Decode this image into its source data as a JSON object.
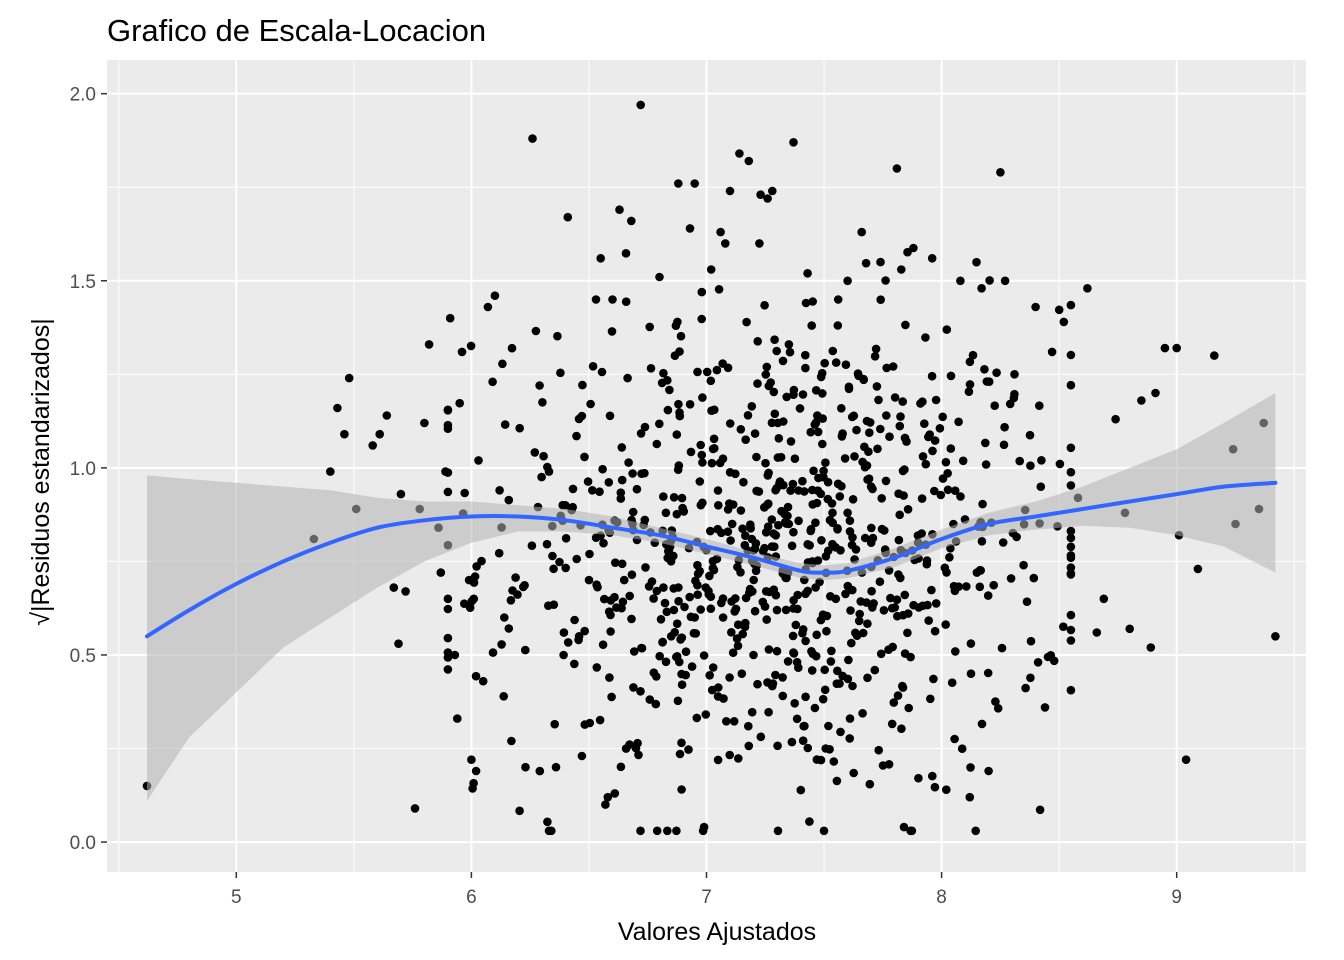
{
  "chart_data": {
    "type": "scatter",
    "title": "Grafico de Escala-Locacion",
    "xlabel": "Valores Ajustados",
    "ylabel": "Residuos estandarizados",
    "ylabel_prefix": "√|",
    "ylabel_suffix": "|",
    "xlim": [
      4.45,
      9.55
    ],
    "ylim": [
      -0.08,
      2.09
    ],
    "x_ticks": [
      5,
      6,
      7,
      8,
      9
    ],
    "x_tick_labels": [
      "5",
      "6",
      "7",
      "8",
      "9"
    ],
    "y_ticks": [
      0.0,
      0.5,
      1.0,
      1.5,
      2.0
    ],
    "y_tick_labels": [
      "0.0",
      "0.5",
      "1.0",
      "1.5",
      "2.0"
    ],
    "grid": true,
    "colors": {
      "panel": "#ebebeb",
      "grid": "#ffffff",
      "points": "#000000",
      "smooth": "#3366ff",
      "band": "#b3b3b3"
    },
    "points": {
      "summary": "Approximately 1000 residual points, centred near x=7.3 (sd about 0.8) and y about 0.8 (range 0.02 to 1.97). Listed values are the distinctly readable ones; remaining dense-cloud points are approximated with the same distribution.",
      "n_total": 1000,
      "x": [
        4.62,
        5.33,
        5.4,
        5.43,
        5.46,
        5.48,
        5.51,
        5.58,
        5.61,
        5.64,
        5.67,
        5.69,
        5.7,
        5.72,
        5.76,
        5.78,
        5.8,
        5.82,
        5.86,
        5.87,
        5.89,
        5.91,
        5.93,
        5.94,
        5.96,
        5.99,
        6.0,
        6.01,
        6.02,
        6.03,
        6.05,
        6.07,
        6.09,
        6.1,
        6.12,
        6.14,
        6.17,
        6.23,
        6.26,
        6.29,
        6.33,
        6.36,
        6.41,
        6.47,
        6.53,
        6.55,
        6.57,
        6.58,
        6.6,
        6.63,
        6.68,
        6.72,
        6.8,
        6.87,
        6.88,
        6.93,
        6.95,
        6.99,
        7.02,
        7.06,
        7.08,
        7.1,
        7.14,
        7.18,
        7.23,
        7.26,
        7.28,
        7.37,
        7.43,
        7.5,
        7.56,
        7.6,
        7.66,
        7.74,
        7.81,
        7.84,
        7.96,
        8.02,
        8.08,
        8.12,
        8.17,
        8.2,
        8.25,
        8.27,
        8.31,
        8.4,
        8.44,
        8.47,
        8.52,
        8.55,
        8.58,
        8.62,
        8.66,
        8.69,
        8.74,
        8.78,
        8.8,
        8.85,
        8.89,
        8.91,
        8.95,
        9.0,
        9.01,
        9.04,
        9.09,
        9.16,
        9.24,
        9.25,
        9.35,
        9.37,
        9.42,
        6.78,
        6.65,
        6.95,
        7.05,
        7.2,
        7.35,
        7.45,
        7.55,
        7.7,
        7.9,
        6.5,
        6.4,
        8.05,
        8.15,
        7.0,
        7.3,
        7.6,
        6.85,
        7.15
      ],
      "y": [
        0.15,
        0.81,
        0.99,
        1.16,
        1.09,
        1.24,
        0.89,
        1.06,
        1.09,
        1.14,
        0.68,
        0.53,
        0.93,
        0.67,
        0.09,
        0.89,
        1.12,
        1.33,
        0.84,
        0.72,
        0.99,
        1.4,
        0.5,
        0.33,
        1.31,
        0.7,
        0.22,
        0.65,
        0.19,
        1.02,
        0.43,
        1.43,
        1.23,
        1.46,
        0.94,
        0.6,
        0.27,
        0.2,
        1.88,
        1.22,
        0.99,
        0.2,
        1.67,
        0.23,
        1.45,
        1.56,
        0.1,
        0.12,
        1.45,
        1.69,
        1.66,
        1.97,
        1.51,
        1.38,
        1.76,
        1.64,
        1.76,
        0.04,
        1.53,
        1.63,
        1.6,
        1.74,
        1.84,
        1.82,
        1.73,
        1.72,
        1.74,
        1.87,
        1.52,
        0.03,
        1.45,
        1.5,
        1.63,
        1.55,
        1.8,
        0.04,
        1.56,
        0.14,
        1.5,
        0.12,
        1.48,
        0.19,
        1.79,
        1.5,
        1.25,
        1.43,
        0.36,
        1.31,
        1.39,
        0.76,
        0.92,
        1.48,
        0.56,
        0.65,
        1.13,
        0.88,
        0.57,
        1.18,
        0.52,
        1.2,
        1.32,
        1.32,
        0.82,
        0.22,
        0.73,
        1.3,
        1.05,
        0.85,
        0.89,
        1.12,
        0.55,
        0.8,
        0.7,
        0.6,
        0.9,
        0.5,
        0.85,
        0.75,
        0.65,
        0.95,
        0.8,
        0.7,
        0.9,
        0.85,
        0.72,
        0.78,
        0.62,
        0.88,
        0.55,
        0.45
      ]
    },
    "smooth": {
      "method": "loess",
      "x": [
        4.62,
        4.8,
        5.0,
        5.2,
        5.4,
        5.6,
        5.8,
        6.0,
        6.2,
        6.4,
        6.6,
        6.8,
        7.0,
        7.2,
        7.4,
        7.5,
        7.6,
        7.8,
        8.0,
        8.2,
        8.4,
        8.6,
        8.8,
        9.0,
        9.2,
        9.42
      ],
      "y": [
        0.55,
        0.62,
        0.69,
        0.75,
        0.8,
        0.84,
        0.86,
        0.87,
        0.87,
        0.86,
        0.84,
        0.82,
        0.79,
        0.76,
        0.725,
        0.72,
        0.725,
        0.76,
        0.81,
        0.85,
        0.87,
        0.89,
        0.91,
        0.93,
        0.95,
        0.96
      ],
      "lower": [
        0.11,
        0.28,
        0.4,
        0.52,
        0.6,
        0.68,
        0.75,
        0.8,
        0.83,
        0.83,
        0.82,
        0.8,
        0.77,
        0.74,
        0.705,
        0.7,
        0.705,
        0.735,
        0.785,
        0.82,
        0.835,
        0.845,
        0.84,
        0.82,
        0.79,
        0.72
      ],
      "upper": [
        0.98,
        0.97,
        0.96,
        0.95,
        0.94,
        0.92,
        0.91,
        0.91,
        0.9,
        0.89,
        0.87,
        0.84,
        0.81,
        0.775,
        0.745,
        0.74,
        0.745,
        0.785,
        0.835,
        0.88,
        0.91,
        0.95,
        1.0,
        1.05,
        1.12,
        1.2
      ]
    }
  }
}
